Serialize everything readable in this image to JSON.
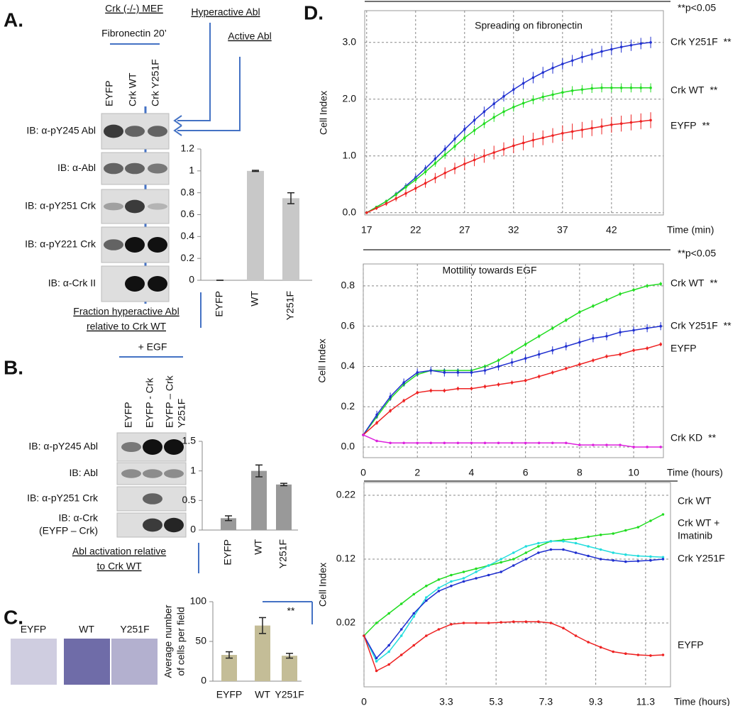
{
  "panel_a": {
    "label": "A.",
    "cells": "Crk (-/-) MEF",
    "treatment": "Fibronectin 20’",
    "arrows": [
      "Hyperactive Abl",
      "Active Abl"
    ],
    "lanes": [
      "EYFP",
      "Crk WT",
      "Crk Y251F"
    ],
    "blots": [
      "IB: α-pY245 Abl",
      "IB: α-Abl",
      "IB: α-pY251 Crk",
      "IB: α-pY221 Crk",
      "IB: α-Crk II"
    ]
  },
  "panel_b": {
    "label": "B.",
    "treatment": "+ EGF",
    "lanes": [
      [
        "EYFP"
      ],
      [
        "EYFP - Crk"
      ],
      [
        "EYFP – Crk",
        "Y251F"
      ]
    ],
    "blots": [
      [
        "IB: α-pY245 Abl"
      ],
      [
        "IB: Abl"
      ],
      [
        "IB: α-pY251 Crk"
      ],
      [
        "IB: α-Crk",
        "(EYFP – Crk)"
      ]
    ]
  },
  "panel_c": {
    "label": "C.",
    "images": [
      "EYFP",
      "WT",
      "Y251F"
    ]
  },
  "panel_d": {
    "label": "D."
  },
  "chart_data": [
    {
      "type": "bar",
      "categories": [
        "EYFP",
        "WT",
        "Y251F"
      ],
      "values": [
        0,
        1,
        0.75
      ],
      "errors": [
        0,
        0.005,
        0.05
      ],
      "color": "#c8c8c8",
      "ylim": [
        0,
        1.2
      ],
      "yticks": [
        0,
        0.2,
        0.4,
        0.6,
        0.8,
        1,
        1.2
      ],
      "xlabel": [
        "Fraction hyperactive Abl",
        "relative to Crk WT"
      ]
    },
    {
      "type": "bar",
      "categories": [
        "EYFP",
        "WT",
        "Y251F"
      ],
      "values": [
        0.2,
        1,
        0.77
      ],
      "errors": [
        0.04,
        0.1,
        0.02
      ],
      "color": "#999999",
      "ylim": [
        0,
        1.5
      ],
      "yticks": [
        0,
        0.5,
        1,
        1.5
      ],
      "xlabel": [
        "Abl activation relative",
        "to Crk WT"
      ]
    },
    {
      "type": "bar",
      "categories": [
        "EYFP",
        "WT",
        "Y251F"
      ],
      "values": [
        33,
        70,
        32
      ],
      "errors": [
        4,
        10,
        3
      ],
      "color": "#c4bd97",
      "ylim": [
        0,
        100
      ],
      "yticks": [
        0,
        50,
        100
      ],
      "ylabel": [
        "Average number",
        "of cells per field"
      ],
      "annotation": "**"
    },
    {
      "type": "line",
      "title": "Spreading on fibronectin",
      "note": "**p<0.05",
      "ylabel": "Cell Index",
      "xlabel": "Time (min)",
      "grid": true,
      "x": [
        17,
        18,
        19,
        20,
        21,
        22,
        23,
        24,
        25,
        26,
        27,
        28,
        29,
        30,
        31,
        32,
        33,
        34,
        35,
        36,
        37,
        38,
        39,
        40,
        41,
        42,
        43,
        44,
        45,
        46
      ],
      "xlim": [
        16.8,
        47.3
      ],
      "xticks": [
        17,
        22,
        27,
        32,
        37,
        42
      ],
      "ylim": [
        -0.04,
        3.56
      ],
      "yticks": [
        {
          "value": 0,
          "label": "0.0"
        },
        {
          "value": 1,
          "label": "1.0"
        },
        {
          "value": 2,
          "label": "2.0"
        },
        {
          "value": 3,
          "label": "3.0"
        }
      ],
      "series": [
        {
          "name": "Crk Y251F",
          "sig": "**",
          "color": "#2030d0",
          "label_color": "#2e4e8e",
          "values": [
            0,
            0.1,
            0.2,
            0.33,
            0.47,
            0.62,
            0.78,
            0.95,
            1.12,
            1.3,
            1.47,
            1.63,
            1.78,
            1.92,
            2.05,
            2.17,
            2.28,
            2.38,
            2.47,
            2.55,
            2.62,
            2.68,
            2.74,
            2.79,
            2.84,
            2.88,
            2.92,
            2.95,
            2.98,
            3.0
          ],
          "errors": [
            0,
            0.02,
            0.03,
            0.04,
            0.05,
            0.06,
            0.06,
            0.07,
            0.07,
            0.08,
            0.08,
            0.08,
            0.09,
            0.09,
            0.09,
            0.09,
            0.1,
            0.1,
            0.1,
            0.1,
            0.1,
            0.1,
            0.1,
            0.1,
            0.1,
            0.1,
            0.1,
            0.1,
            0.1,
            0.1
          ]
        },
        {
          "name": "Crk WT",
          "sig": "**",
          "color": "#22dd22",
          "label_color": "#22aa22",
          "values": [
            0,
            0.1,
            0.2,
            0.32,
            0.45,
            0.58,
            0.72,
            0.87,
            1.02,
            1.17,
            1.32,
            1.45,
            1.57,
            1.68,
            1.78,
            1.86,
            1.93,
            1.99,
            2.04,
            2.08,
            2.12,
            2.15,
            2.17,
            2.19,
            2.2,
            2.2,
            2.2,
            2.2,
            2.2,
            2.2
          ],
          "errors": [
            0,
            0.02,
            0.03,
            0.04,
            0.05,
            0.05,
            0.06,
            0.06,
            0.07,
            0.07,
            0.07,
            0.08,
            0.08,
            0.08,
            0.08,
            0.08,
            0.08,
            0.08,
            0.08,
            0.08,
            0.08,
            0.08,
            0.08,
            0.08,
            0.08,
            0.08,
            0.08,
            0.08,
            0.08,
            0.08
          ]
        },
        {
          "name": "EYFP",
          "sig": "**",
          "color": "#ee2222",
          "label_color": "#ee2222",
          "values": [
            0,
            0.08,
            0.16,
            0.25,
            0.34,
            0.43,
            0.52,
            0.61,
            0.7,
            0.78,
            0.86,
            0.93,
            1.0,
            1.06,
            1.12,
            1.18,
            1.23,
            1.28,
            1.32,
            1.36,
            1.4,
            1.43,
            1.46,
            1.49,
            1.52,
            1.55,
            1.57,
            1.59,
            1.61,
            1.63
          ],
          "errors": [
            0,
            0.03,
            0.04,
            0.05,
            0.06,
            0.07,
            0.08,
            0.09,
            0.1,
            0.1,
            0.11,
            0.11,
            0.12,
            0.12,
            0.12,
            0.13,
            0.13,
            0.13,
            0.13,
            0.13,
            0.14,
            0.14,
            0.14,
            0.14,
            0.14,
            0.14,
            0.14,
            0.14,
            0.14,
            0.14
          ]
        }
      ]
    },
    {
      "type": "line",
      "title": "Mottility towards EGF",
      "note": "**p<0.05",
      "ylabel": "Cell Index",
      "xlabel": "Time (hours)",
      "grid": true,
      "x": [
        0,
        0.5,
        1,
        1.5,
        2,
        2.5,
        3,
        3.5,
        4,
        4.5,
        5,
        5.5,
        6,
        6.5,
        7,
        7.5,
        8,
        8.5,
        9,
        9.5,
        10,
        10.5,
        11
      ],
      "xlim": [
        0,
        11.1
      ],
      "xticks": [
        0,
        2,
        4,
        6,
        8,
        10
      ],
      "ylim": [
        -0.053,
        0.909
      ],
      "yticks": [
        {
          "value": 0,
          "label": "0.0"
        },
        0.2,
        0.4,
        0.6,
        0.8
      ],
      "series": [
        {
          "name": "Crk WT",
          "sig": "**",
          "color": "#22dd22",
          "label_color": "#22aa22",
          "values": [
            0.06,
            0.15,
            0.24,
            0.31,
            0.36,
            0.38,
            0.38,
            0.38,
            0.38,
            0.4,
            0.43,
            0.47,
            0.51,
            0.55,
            0.59,
            0.63,
            0.67,
            0.7,
            0.73,
            0.76,
            0.78,
            0.8,
            0.81
          ],
          "errors": [
            0,
            0.01,
            0.01,
            0.01,
            0.01,
            0.01,
            0.01,
            0.01,
            0.01,
            0.01,
            0.01,
            0.01,
            0.01,
            0.01,
            0.01,
            0.01,
            0.01,
            0.01,
            0.01,
            0.01,
            0.01,
            0.01,
            0.01
          ]
        },
        {
          "name": "Crk Y251F",
          "sig": "**",
          "color": "#2030d0",
          "label_color": "#2e4e8e",
          "values": [
            0.06,
            0.16,
            0.25,
            0.32,
            0.37,
            0.38,
            0.37,
            0.37,
            0.37,
            0.38,
            0.4,
            0.42,
            0.44,
            0.46,
            0.48,
            0.5,
            0.52,
            0.54,
            0.55,
            0.57,
            0.58,
            0.59,
            0.6
          ],
          "errors": [
            0,
            0.02,
            0.02,
            0.02,
            0.02,
            0.02,
            0.02,
            0.02,
            0.02,
            0.02,
            0.02,
            0.02,
            0.02,
            0.02,
            0.02,
            0.02,
            0.02,
            0.02,
            0.02,
            0.02,
            0.02,
            0.02,
            0.02
          ]
        },
        {
          "name": "EYFP",
          "color": "#ee2222",
          "label_color": "#ee2222",
          "values": [
            0.06,
            0.12,
            0.18,
            0.23,
            0.27,
            0.28,
            0.28,
            0.29,
            0.29,
            0.3,
            0.31,
            0.32,
            0.33,
            0.35,
            0.37,
            0.39,
            0.41,
            0.43,
            0.45,
            0.46,
            0.48,
            0.49,
            0.51
          ],
          "errors": [
            0,
            0.01,
            0.01,
            0.01,
            0.01,
            0.01,
            0.01,
            0.01,
            0.01,
            0.01,
            0.01,
            0.01,
            0.01,
            0.01,
            0.01,
            0.01,
            0.01,
            0.01,
            0.01,
            0.01,
            0.01,
            0.01,
            0.01
          ]
        },
        {
          "name": "Crk KD",
          "sig": "**",
          "color": "#dd22dd",
          "label_color": "#cc1177",
          "values": [
            0.06,
            0.03,
            0.02,
            0.02,
            0.02,
            0.02,
            0.02,
            0.02,
            0.02,
            0.02,
            0.02,
            0.02,
            0.02,
            0.02,
            0.02,
            0.02,
            0.01,
            0.01,
            0.01,
            0.01,
            0.0,
            0.0,
            0.0
          ]
        }
      ]
    },
    {
      "type": "line",
      "ylabel": "Cell Index",
      "xlabel": "Time (hours)",
      "grid": true,
      "x": [
        0,
        0.5,
        1,
        1.5,
        2,
        2.5,
        3,
        3.5,
        4,
        4.5,
        5,
        5.5,
        6,
        6.5,
        7,
        7.5,
        8,
        8.5,
        9,
        9.5,
        10,
        10.5,
        11,
        11.5,
        12
      ],
      "xlim": [
        0,
        12.3
      ],
      "xticks": [
        0,
        3.3,
        5.3,
        7.3,
        9.3,
        11.3
      ],
      "ylim": [
        -0.08,
        0.24
      ],
      "yticks": [
        0.02,
        0.12,
        0.22
      ],
      "series": [
        {
          "name": "Crk WT",
          "color": "#22dd22",
          "label_color": "#22aa22",
          "values": [
            0.0,
            0.02,
            0.035,
            0.05,
            0.065,
            0.078,
            0.088,
            0.095,
            0.1,
            0.105,
            0.11,
            0.115,
            0.12,
            0.13,
            0.14,
            0.148,
            0.15,
            0.152,
            0.155,
            0.158,
            0.16,
            0.165,
            0.17,
            0.18,
            0.19
          ]
        },
        {
          "name": [
            "Crk WT +",
            "Imatinib"
          ],
          "color": "#22dddd",
          "label_color": "#22cccc",
          "values": [
            0.0,
            -0.04,
            -0.025,
            0.0,
            0.03,
            0.06,
            0.075,
            0.085,
            0.09,
            0.1,
            0.11,
            0.12,
            0.13,
            0.14,
            0.145,
            0.148,
            0.148,
            0.145,
            0.14,
            0.135,
            0.13,
            0.127,
            0.125,
            0.124,
            0.123
          ]
        },
        {
          "name": "Crk Y251F",
          "color": "#2030d0",
          "label_color": "#2e4e8e",
          "values": [
            0.0,
            -0.035,
            -0.015,
            0.01,
            0.035,
            0.055,
            0.07,
            0.078,
            0.085,
            0.09,
            0.095,
            0.1,
            0.11,
            0.12,
            0.13,
            0.135,
            0.135,
            0.13,
            0.125,
            0.12,
            0.118,
            0.116,
            0.117,
            0.118,
            0.12
          ]
        },
        {
          "name": "EYFP",
          "color": "#ee2222",
          "label_color": "#ee2222",
          "values": [
            0.0,
            -0.055,
            -0.045,
            -0.03,
            -0.015,
            0.0,
            0.01,
            0.018,
            0.02,
            0.02,
            0.02,
            0.021,
            0.022,
            0.022,
            0.022,
            0.02,
            0.012,
            0.0,
            -0.01,
            -0.018,
            -0.025,
            -0.028,
            -0.03,
            -0.031,
            -0.03
          ]
        }
      ]
    }
  ]
}
